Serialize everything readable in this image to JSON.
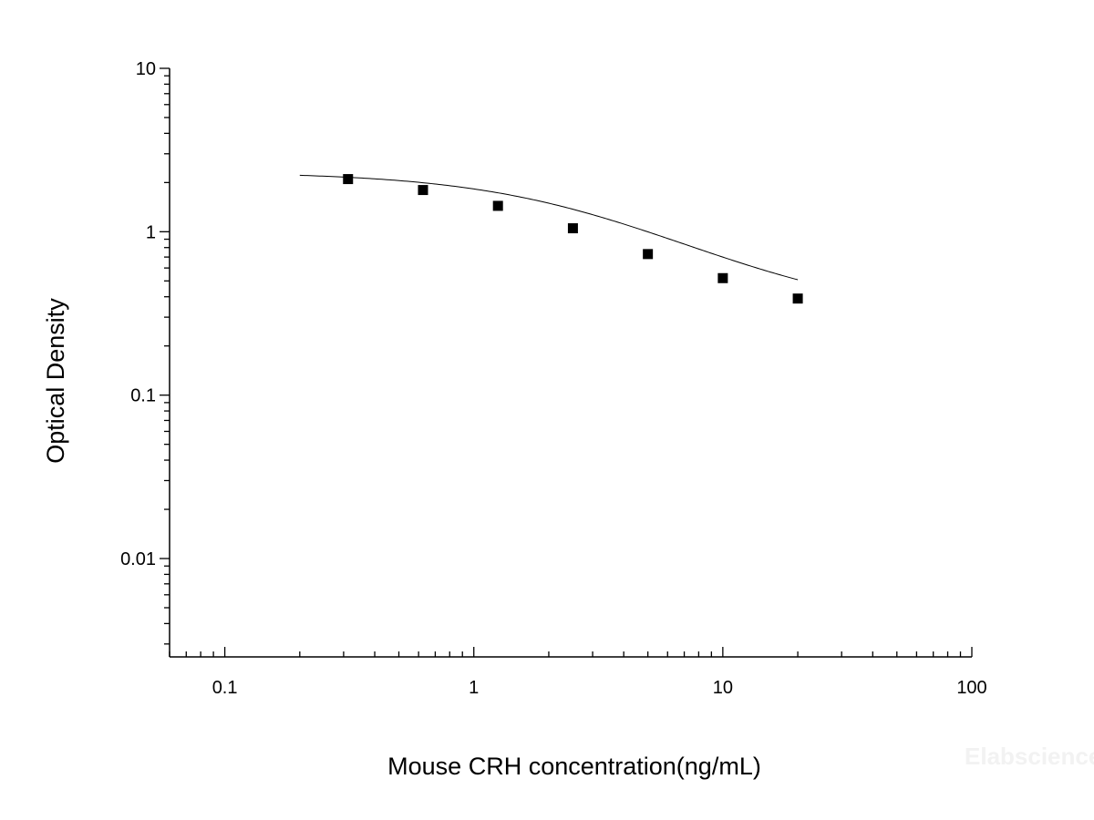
{
  "watermark": "Elabscience",
  "chart_data": {
    "type": "scatter",
    "title": "",
    "xlabel": "Mouse CRH concentration(ng/mL)",
    "ylabel": "Optical Density",
    "xscale": "log",
    "yscale": "log",
    "xlim": [
      0.06,
      100
    ],
    "ylim": [
      0.0025,
      10
    ],
    "x_ticks": [
      0.1,
      1,
      10,
      100
    ],
    "x_tick_labels": [
      "0.1",
      "1",
      "10",
      "100"
    ],
    "y_ticks": [
      0.01,
      0.1,
      1,
      10
    ],
    "y_tick_labels": [
      "0.01",
      "0.1",
      "1",
      "10"
    ],
    "grid": false,
    "legend": "none",
    "series": [
      {
        "marker": "square",
        "color": "#000000",
        "x": [
          0.3125,
          0.625,
          1.25,
          2.5,
          5,
          10,
          20
        ],
        "y": [
          2.1,
          1.8,
          1.44,
          1.05,
          0.73,
          0.52,
          0.39
        ]
      }
    ],
    "fit_curve": {
      "model": "4PL",
      "color": "#000000",
      "x_range": [
        0.2,
        20
      ],
      "A": 2.32,
      "D": 0.3,
      "C": 2.8,
      "B": 1.1
    }
  }
}
